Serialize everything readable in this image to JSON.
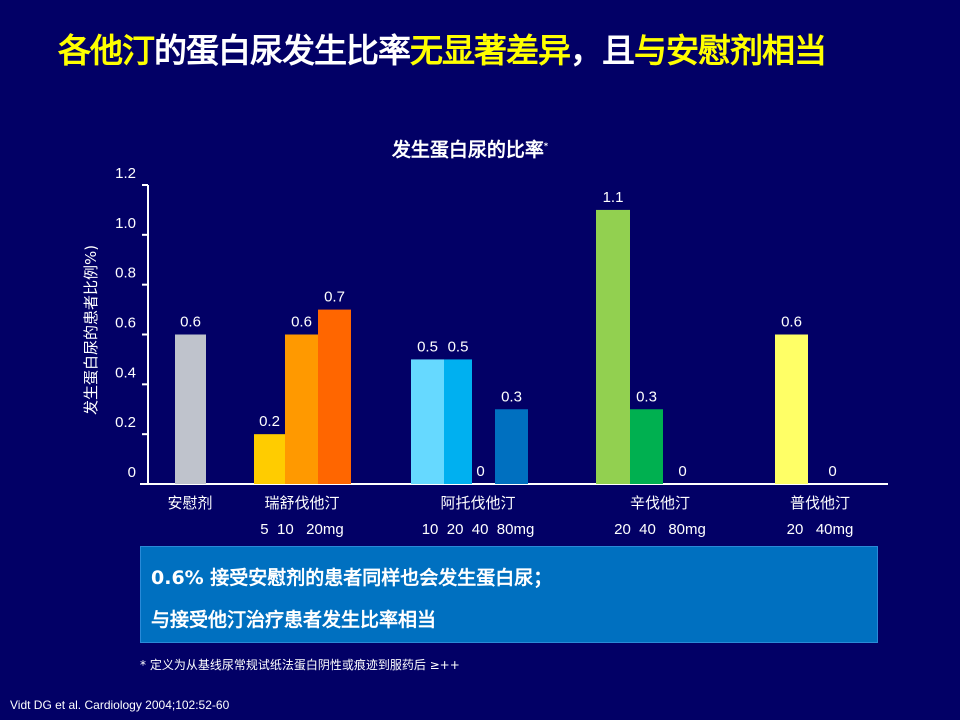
{
  "title": {
    "parts": [
      {
        "text": "各他汀",
        "color": "yellow"
      },
      {
        "text": "的蛋白尿发生比率",
        "color": "white"
      },
      {
        "text": "无显著差异",
        "color": "yellow"
      },
      {
        "text": "，且",
        "color": "white"
      },
      {
        "text": "与安慰剂相当",
        "color": "yellow"
      }
    ]
  },
  "chart_data": {
    "type": "bar",
    "title": "发生蛋白尿的比率",
    "title_mark": "*",
    "ylabel": "发生蛋白尿的患者比例%)",
    "ylim": [
      0,
      1.2
    ],
    "yticks": [
      "0",
      "0.2",
      "0.4",
      "0.6",
      "0.8",
      "1.0",
      "1.2"
    ],
    "grid": false,
    "groups": [
      {
        "name": "安慰剂",
        "doses": "",
        "values": [
          0.6
        ],
        "labels": [
          "0.6"
        ],
        "colors": [
          "#bfc3cc"
        ]
      },
      {
        "name": "瑞舒伐他汀",
        "doses": "5  10   20mg",
        "values": [
          0.2,
          0.6,
          0.7
        ],
        "labels": [
          "0.2",
          "0.6",
          "0.7"
        ],
        "colors": [
          "#ffcc00",
          "#ff9900",
          "#ff6600"
        ]
      },
      {
        "name": "阿托伐他汀",
        "doses": "10  20  40  80mg",
        "values": [
          0.5,
          0.5,
          0,
          0.3
        ],
        "labels": [
          "0.5",
          "0.5",
          "0",
          "0.3"
        ],
        "colors": [
          "#66d9ff",
          "#00b0f0",
          "#0070c0",
          "#0070c0"
        ]
      },
      {
        "name": "辛伐他汀",
        "doses": "20  40   80mg",
        "values": [
          1.1,
          0.3,
          0
        ],
        "labels": [
          "1.1",
          "0.3",
          "0"
        ],
        "colors": [
          "#92d050",
          "#00b050",
          "#00b050"
        ]
      },
      {
        "name": "普伐他汀",
        "doses": "20   40mg",
        "values": [
          0.6,
          0
        ],
        "labels": [
          "0.6",
          "0"
        ],
        "colors": [
          "#ffff66",
          "#ffff66"
        ]
      }
    ]
  },
  "callout": {
    "line1": "0.6% 接受安慰剂的患者同样也会发生蛋白尿；",
    "line2": "与接受他汀治疗患者发生比率相当"
  },
  "footnote": "* 定义为从基线尿常规试纸法蛋白阴性或痕迹到服药后 ≥++",
  "citation": "Vidt DG et al. Cardiology 2004;102:52-60"
}
